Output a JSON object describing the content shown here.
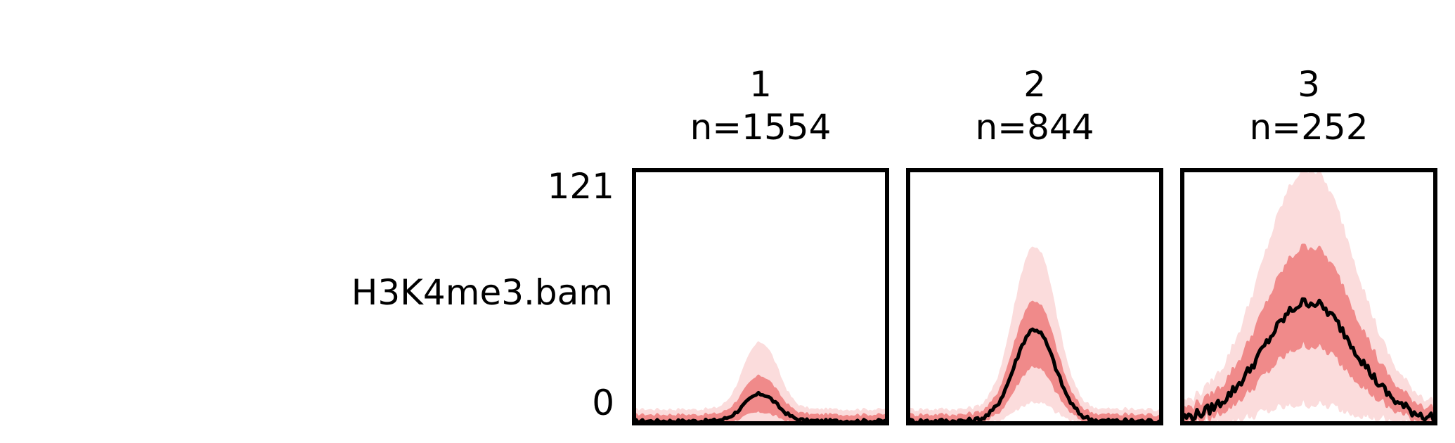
{
  "chart_data": {
    "type": "line",
    "track_label": "H3K4me3.bam",
    "ylim": [
      0,
      121
    ],
    "y_tick_labels": [
      "121",
      "0"
    ],
    "x_range": [
      -1,
      1
    ],
    "panels": [
      {
        "title": "1",
        "count_label": "n=1554",
        "center": 0.0,
        "width": 0.13,
        "median": 14,
        "band_inner": [
          6,
          22
        ],
        "band_outer": [
          1,
          38
        ],
        "baseline": 2,
        "noise": 0.8
      },
      {
        "title": "2",
        "count_label": "n=844",
        "center": 0.0,
        "width": 0.16,
        "median": 45,
        "band_inner": [
          28,
          58
        ],
        "band_outer": [
          11,
          84
        ],
        "baseline": 2,
        "noise": 1.2
      },
      {
        "title": "3",
        "count_label": "n=252",
        "center": 0.0,
        "width": 0.36,
        "median": 58,
        "band_inner": [
          38,
          84
        ],
        "band_outer": [
          10,
          121
        ],
        "baseline": 3,
        "noise": 2.5
      }
    ],
    "colors": {
      "median": "#000000",
      "band_inner": "#f08a8a",
      "band_outer": "#fbdcdc",
      "frame": "#000000"
    }
  }
}
